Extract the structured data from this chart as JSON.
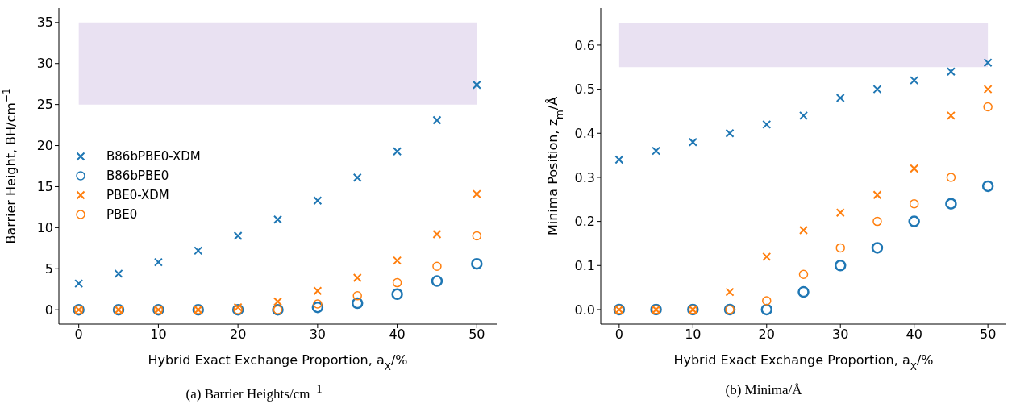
{
  "chart_data": [
    {
      "type": "scatter",
      "title": "(a) Barrier Heights/cm$^{−1}$",
      "xlabel": "Hybrid Exact Exchange Proportion, a$_{X}$/%",
      "ylabel": "Barrier Height, BH/cm$^{−1}$",
      "x": [
        0,
        5,
        10,
        15,
        20,
        25,
        30,
        35,
        40,
        45,
        50
      ],
      "xlim": [
        -2.5,
        52.5
      ],
      "xticks": [
        0,
        10,
        20,
        30,
        40,
        50
      ],
      "ylim": [
        -1.75,
        36.75
      ],
      "yticks": [
        0,
        5,
        10,
        15,
        20,
        25,
        30,
        35
      ],
      "grid": false,
      "legend": "center left",
      "bands": [
        {
          "axis": "y",
          "from": 25,
          "to": 35,
          "color": "#e9e1f2"
        }
      ],
      "series": [
        {
          "name": "B86bPBE0-XDM",
          "color": "#1f77b4",
          "marker": "cross",
          "values": [
            3.2,
            4.4,
            5.8,
            7.2,
            9.0,
            11.0,
            13.3,
            16.1,
            19.3,
            23.1,
            27.4
          ]
        },
        {
          "name": "B86bPBE0",
          "color": "#1f77b4",
          "marker": "circle",
          "values": [
            0,
            0,
            0,
            0,
            0,
            0,
            0.3,
            0.8,
            1.9,
            3.5,
            5.6
          ]
        },
        {
          "name": "PBE0-XDM",
          "color": "#ff7f0e",
          "marker": "cross",
          "values": [
            0,
            0,
            0,
            0,
            0.3,
            1.0,
            2.3,
            3.9,
            6.0,
            9.2,
            14.1
          ]
        },
        {
          "name": "PBE0",
          "color": "#ff7f0e",
          "marker": "circle",
          "values": [
            0,
            0,
            0,
            0,
            0,
            0,
            0.7,
            1.7,
            3.3,
            5.3,
            9.0
          ]
        }
      ]
    },
    {
      "type": "scatter",
      "title": "(b) Minima/Å",
      "xlabel": "Hybrid Exact Exchange Proportion, a$_{X}$/%",
      "ylabel": "Minima Position, z$_{m}$/Å",
      "x": [
        0,
        5,
        10,
        15,
        20,
        25,
        30,
        35,
        40,
        45,
        50
      ],
      "xlim": [
        -2.5,
        52.5
      ],
      "xticks": [
        0,
        10,
        20,
        30,
        40,
        50
      ],
      "ylim": [
        -0.033,
        0.684
      ],
      "yticks": [
        {
          "value": 0,
          "label": "0.0"
        },
        {
          "value": 0.1,
          "label": "0.1"
        },
        {
          "value": 0.2,
          "label": "0.2"
        },
        {
          "value": 0.3,
          "label": "0.3"
        },
        {
          "value": 0.4,
          "label": "0.4"
        },
        {
          "value": 0.5,
          "label": "0.5"
        },
        {
          "value": 0.6,
          "label": "0.6"
        }
      ],
      "grid": false,
      "bands": [
        {
          "axis": "y",
          "from": 0.55,
          "to": 0.65,
          "color": "#e9e1f2"
        }
      ],
      "series": [
        {
          "color": "#1f77b4",
          "marker": "cross",
          "values": [
            0.34,
            0.36,
            0.38,
            0.4,
            0.42,
            0.44,
            0.48,
            0.5,
            0.52,
            0.54,
            0.56
          ]
        },
        {
          "color": "#1f77b4",
          "marker": "circle",
          "values": [
            0,
            0,
            0,
            0,
            0,
            0.04,
            0.1,
            0.14,
            0.2,
            0.24,
            0.28
          ]
        },
        {
          "color": "#ff7f0e",
          "marker": "cross",
          "values": [
            0,
            0,
            0,
            0.04,
            0.12,
            0.18,
            0.22,
            0.26,
            0.32,
            0.44,
            0.5
          ]
        },
        {
          "color": "#ff7f0e",
          "marker": "circle",
          "values": [
            0,
            0,
            0,
            0,
            0.02,
            0.08,
            0.14,
            0.2,
            0.24,
            0.3,
            0.46
          ]
        }
      ]
    }
  ]
}
